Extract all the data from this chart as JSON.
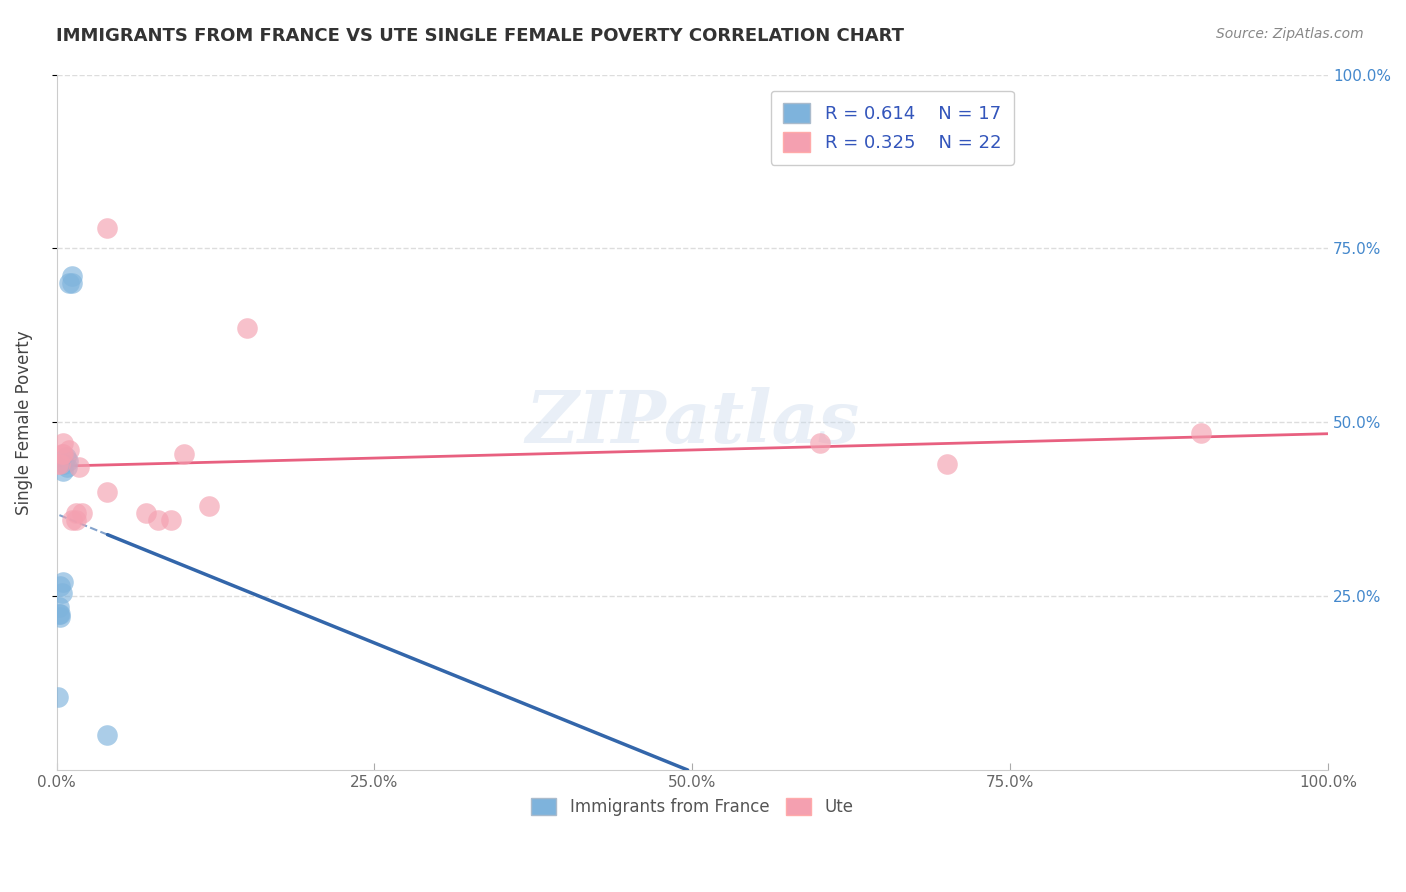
{
  "title": "IMMIGRANTS FROM FRANCE VS UTE SINGLE FEMALE POVERTY CORRELATION CHART",
  "source": "Source: ZipAtlas.com",
  "ylabel": "Single Female Poverty",
  "xlim": [
    0,
    1.0
  ],
  "ylim": [
    0,
    1.0
  ],
  "xticks": [
    0.0,
    0.25,
    0.5,
    0.75,
    1.0
  ],
  "xtick_labels": [
    "0.0%",
    "25.0%",
    "50.0%",
    "75.0%",
    "100.0%"
  ],
  "yticks": [
    0.25,
    0.5,
    0.75,
    1.0
  ],
  "ytick_labels": [
    "25.0%",
    "50.0%",
    "75.0%",
    "100.0%"
  ],
  "blue_color": "#7EB3DC",
  "pink_color": "#F4A0B0",
  "blue_line_color": "#3366AA",
  "pink_line_color": "#E86080",
  "blue_R": "0.614",
  "blue_N": "17",
  "pink_R": "0.325",
  "pink_N": "22",
  "watermark": "ZIPatlas",
  "france_x": [
    0.001,
    0.002,
    0.002,
    0.003,
    0.003,
    0.003,
    0.004,
    0.005,
    0.005,
    0.006,
    0.007,
    0.008,
    0.009,
    0.01,
    0.012,
    0.012,
    0.04
  ],
  "france_y": [
    0.105,
    0.225,
    0.235,
    0.22,
    0.225,
    0.265,
    0.255,
    0.27,
    0.43,
    0.44,
    0.45,
    0.435,
    0.445,
    0.7,
    0.7,
    0.71,
    0.05
  ],
  "ute_x": [
    0.001,
    0.003,
    0.004,
    0.005,
    0.005,
    0.01,
    0.012,
    0.015,
    0.015,
    0.018,
    0.02,
    0.04,
    0.04,
    0.07,
    0.08,
    0.09,
    0.1,
    0.12,
    0.15,
    0.6,
    0.7,
    0.9
  ],
  "ute_y": [
    0.44,
    0.44,
    0.455,
    0.455,
    0.47,
    0.46,
    0.36,
    0.36,
    0.37,
    0.435,
    0.37,
    0.4,
    0.78,
    0.37,
    0.36,
    0.36,
    0.455,
    0.38,
    0.635,
    0.47,
    0.44,
    0.485
  ],
  "background_color": "#FFFFFF",
  "grid_color": "#DDDDDD",
  "title_color": "#333333",
  "title_fontsize": 13,
  "axis_label_color": "#444444",
  "right_tick_color": "#4488CC",
  "legend_label_color": "#3355BB"
}
